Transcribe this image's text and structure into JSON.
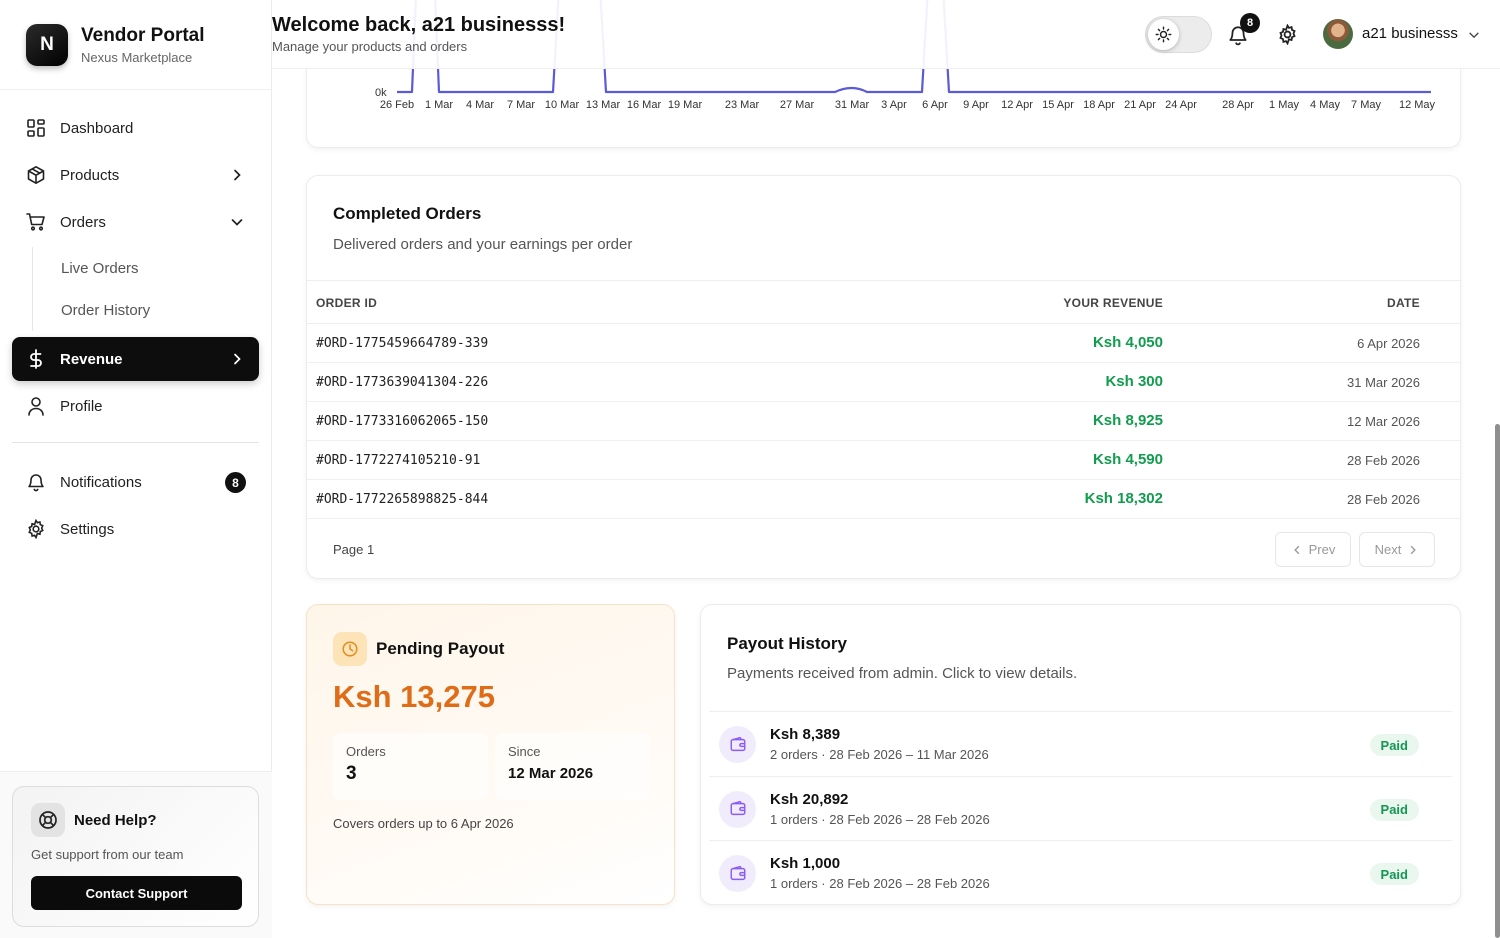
{
  "brand": {
    "logo_letter": "N",
    "title": "Vendor Portal",
    "subtitle": "Nexus Marketplace"
  },
  "nav": {
    "dashboard": "Dashboard",
    "products": "Products",
    "orders": "Orders",
    "orders_sub": [
      "Live Orders",
      "Order History"
    ],
    "revenue": "Revenue",
    "profile": "Profile",
    "notifications": "Notifications",
    "notifications_count": "8",
    "settings": "Settings"
  },
  "help": {
    "title": "Need Help?",
    "subtitle": "Get support from our team",
    "button": "Contact Support"
  },
  "header": {
    "title": "Welcome back, a21 businesss!",
    "subtitle": "Manage your products and orders",
    "bell_count": "8",
    "user_name": "a21 businesss"
  },
  "chart_data": {
    "type": "line",
    "y_tick_visible": "0k",
    "x": [
      "26 Feb",
      "1 Mar",
      "4 Mar",
      "7 Mar",
      "10 Mar",
      "13 Mar",
      "16 Mar",
      "19 Mar",
      "23 Mar",
      "27 Mar",
      "31 Mar",
      "3 Apr",
      "6 Apr",
      "9 Apr",
      "12 Apr",
      "15 Apr",
      "18 Apr",
      "21 Apr",
      "24 Apr",
      "28 Apr",
      "1 May",
      "4 May",
      "7 May",
      "12 May"
    ],
    "line_color": "#5b5bd6"
  },
  "orders": {
    "title": "Completed Orders",
    "description": "Delivered orders and your earnings per order",
    "columns": {
      "id": "ORDER ID",
      "revenue": "YOUR REVENUE",
      "date": "DATE"
    },
    "rows": [
      {
        "id": "#ORD-1775459664789-339",
        "revenue": "Ksh 4,050",
        "date": "6 Apr 2026"
      },
      {
        "id": "#ORD-1773639041304-226",
        "revenue": "Ksh 300",
        "date": "31 Mar 2026"
      },
      {
        "id": "#ORD-1773316062065-150",
        "revenue": "Ksh 8,925",
        "date": "12 Mar 2026"
      },
      {
        "id": "#ORD-1772274105210-91",
        "revenue": "Ksh 4,590",
        "date": "28 Feb 2026"
      },
      {
        "id": "#ORD-1772265898825-844",
        "revenue": "Ksh 18,302",
        "date": "28 Feb 2026"
      }
    ],
    "page_label": "Page 1",
    "prev": "Prev",
    "next": "Next"
  },
  "pending": {
    "title": "Pending Payout",
    "amount": "Ksh 13,275",
    "orders_label": "Orders",
    "orders_value": "3",
    "since_label": "Since",
    "since_value": "12 Mar 2026",
    "note": "Covers orders up to 6 Apr 2026"
  },
  "history": {
    "title": "Payout History",
    "description": "Payments received from admin. Click to view details.",
    "items": [
      {
        "amount": "Ksh 8,389",
        "meta": "2 orders · 28 Feb 2026 – 11 Mar 2026",
        "status": "Paid"
      },
      {
        "amount": "Ksh 20,892",
        "meta": "1 orders · 28 Feb 2026 – 28 Feb 2026",
        "status": "Paid"
      },
      {
        "amount": "Ksh 1,000",
        "meta": "1 orders · 28 Feb 2026 – 28 Feb 2026",
        "status": "Paid"
      }
    ]
  }
}
